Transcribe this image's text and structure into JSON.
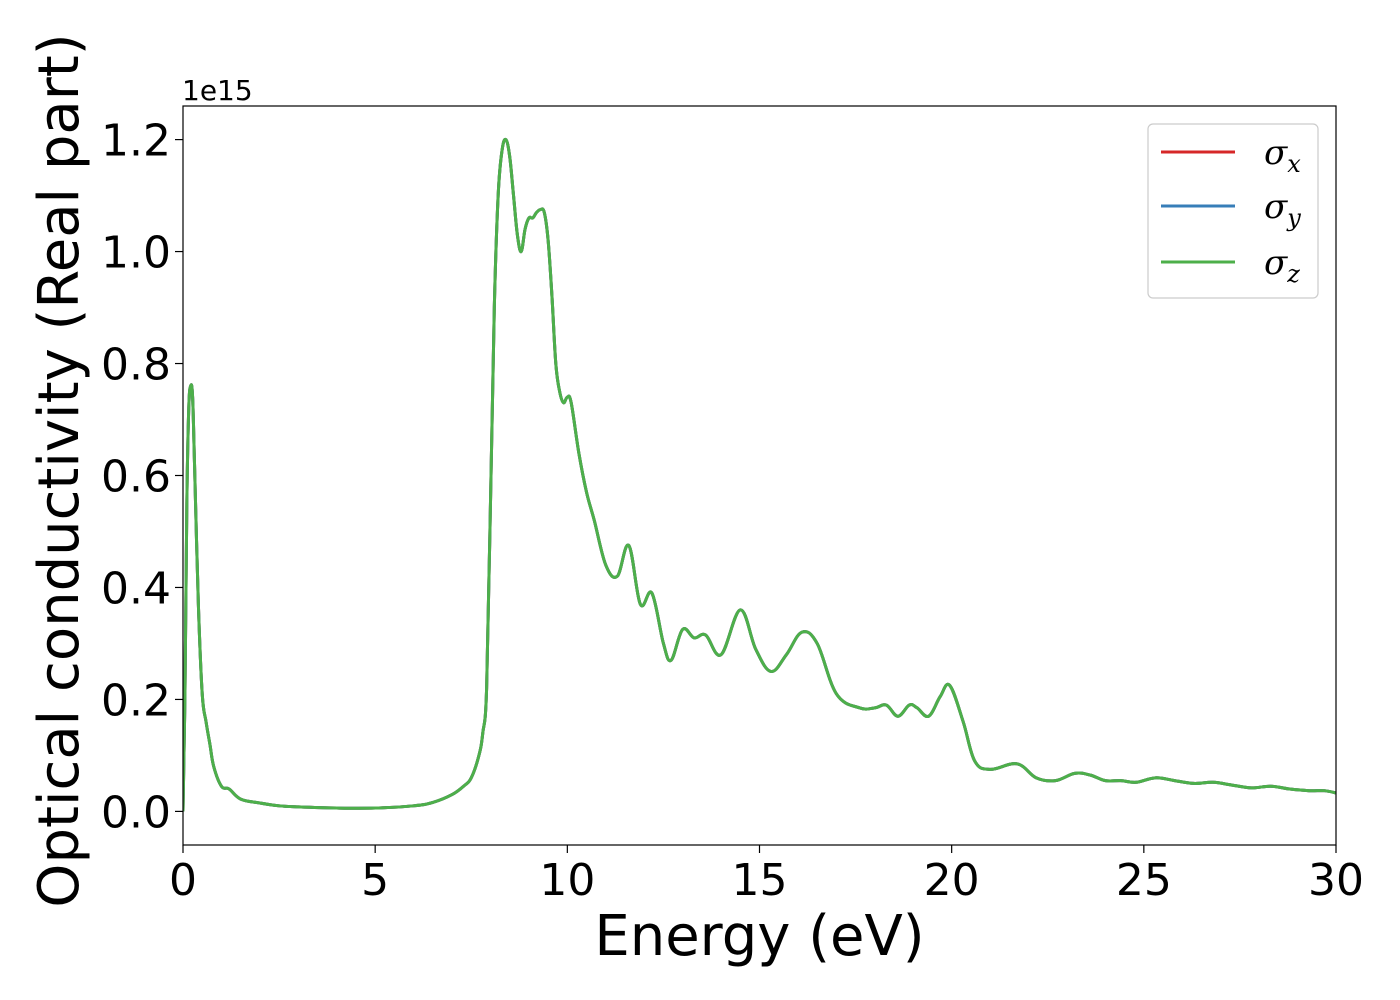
{
  "chart_data": {
    "type": "line",
    "xlabel": "Energy (eV)",
    "ylabel": "Optical conductivity (Real part)",
    "y_offset_label": "1e15",
    "xlim": [
      0,
      30
    ],
    "ylim": [
      -0.06,
      1.26
    ],
    "x_ticks": [
      0,
      5,
      10,
      15,
      20,
      25,
      30
    ],
    "x_tick_labels": [
      "0",
      "5",
      "10",
      "15",
      "20",
      "25",
      "30"
    ],
    "y_ticks": [
      0.0,
      0.2,
      0.4,
      0.6,
      0.8,
      1.0,
      1.2
    ],
    "y_tick_labels": [
      "0.0",
      "0.2",
      "0.4",
      "0.6",
      "0.8",
      "1.0",
      "1.2"
    ],
    "grid": false,
    "legend_position": "top-right",
    "series": [
      {
        "name": "σx",
        "color": "#d62728"
      },
      {
        "name": "σy",
        "color": "#377eb8"
      },
      {
        "name": "σz",
        "color": "#4daf4a"
      }
    ],
    "x": [
      0,
      0.05,
      0.1,
      0.15,
      0.2,
      0.25,
      0.3,
      0.4,
      0.5,
      0.6,
      0.7,
      0.8,
      1.0,
      1.2,
      1.5,
      2.0,
      2.5,
      3.0,
      4.0,
      5.0,
      6.0,
      6.5,
      7.0,
      7.3,
      7.5,
      7.7,
      7.8,
      7.9,
      8.0,
      8.1,
      8.2,
      8.3,
      8.4,
      8.5,
      8.6,
      8.7,
      8.8,
      8.9,
      9.0,
      9.1,
      9.2,
      9.3,
      9.4,
      9.5,
      9.6,
      9.7,
      9.8,
      9.9,
      10.0,
      10.1,
      10.3,
      10.5,
      10.7,
      11.0,
      11.3,
      11.6,
      11.9,
      12.2,
      12.5,
      12.7,
      13.0,
      13.3,
      13.6,
      14.0,
      14.5,
      14.9,
      15.3,
      15.7,
      16.1,
      16.5,
      17.0,
      17.6,
      18.0,
      18.3,
      18.6,
      18.9,
      19.1,
      19.4,
      19.7,
      19.95,
      20.3,
      20.6,
      21.0,
      21.7,
      22.2,
      22.7,
      23.2,
      23.6,
      24.0,
      24.4,
      24.8,
      25.3,
      25.8,
      26.3,
      26.8,
      27.3,
      27.8,
      28.3,
      28.8,
      29.3,
      29.7,
      30.0
    ],
    "values": [
      0.0,
      0.2,
      0.55,
      0.72,
      0.76,
      0.74,
      0.62,
      0.37,
      0.21,
      0.16,
      0.12,
      0.08,
      0.045,
      0.04,
      0.022,
      0.015,
      0.01,
      0.008,
      0.006,
      0.006,
      0.01,
      0.016,
      0.03,
      0.045,
      0.06,
      0.1,
      0.14,
      0.22,
      0.55,
      0.9,
      1.1,
      1.18,
      1.2,
      1.17,
      1.1,
      1.03,
      1.0,
      1.04,
      1.06,
      1.06,
      1.07,
      1.075,
      1.07,
      1.02,
      0.92,
      0.8,
      0.75,
      0.73,
      0.74,
      0.73,
      0.64,
      0.57,
      0.52,
      0.44,
      0.42,
      0.475,
      0.37,
      0.39,
      0.3,
      0.27,
      0.325,
      0.31,
      0.315,
      0.28,
      0.36,
      0.29,
      0.25,
      0.28,
      0.32,
      0.3,
      0.21,
      0.185,
      0.185,
      0.19,
      0.17,
      0.19,
      0.185,
      0.17,
      0.205,
      0.225,
      0.16,
      0.09,
      0.075,
      0.085,
      0.06,
      0.055,
      0.068,
      0.065,
      0.055,
      0.055,
      0.052,
      0.06,
      0.055,
      0.05,
      0.052,
      0.047,
      0.042,
      0.045,
      0.04,
      0.037,
      0.037,
      0.033
    ]
  }
}
